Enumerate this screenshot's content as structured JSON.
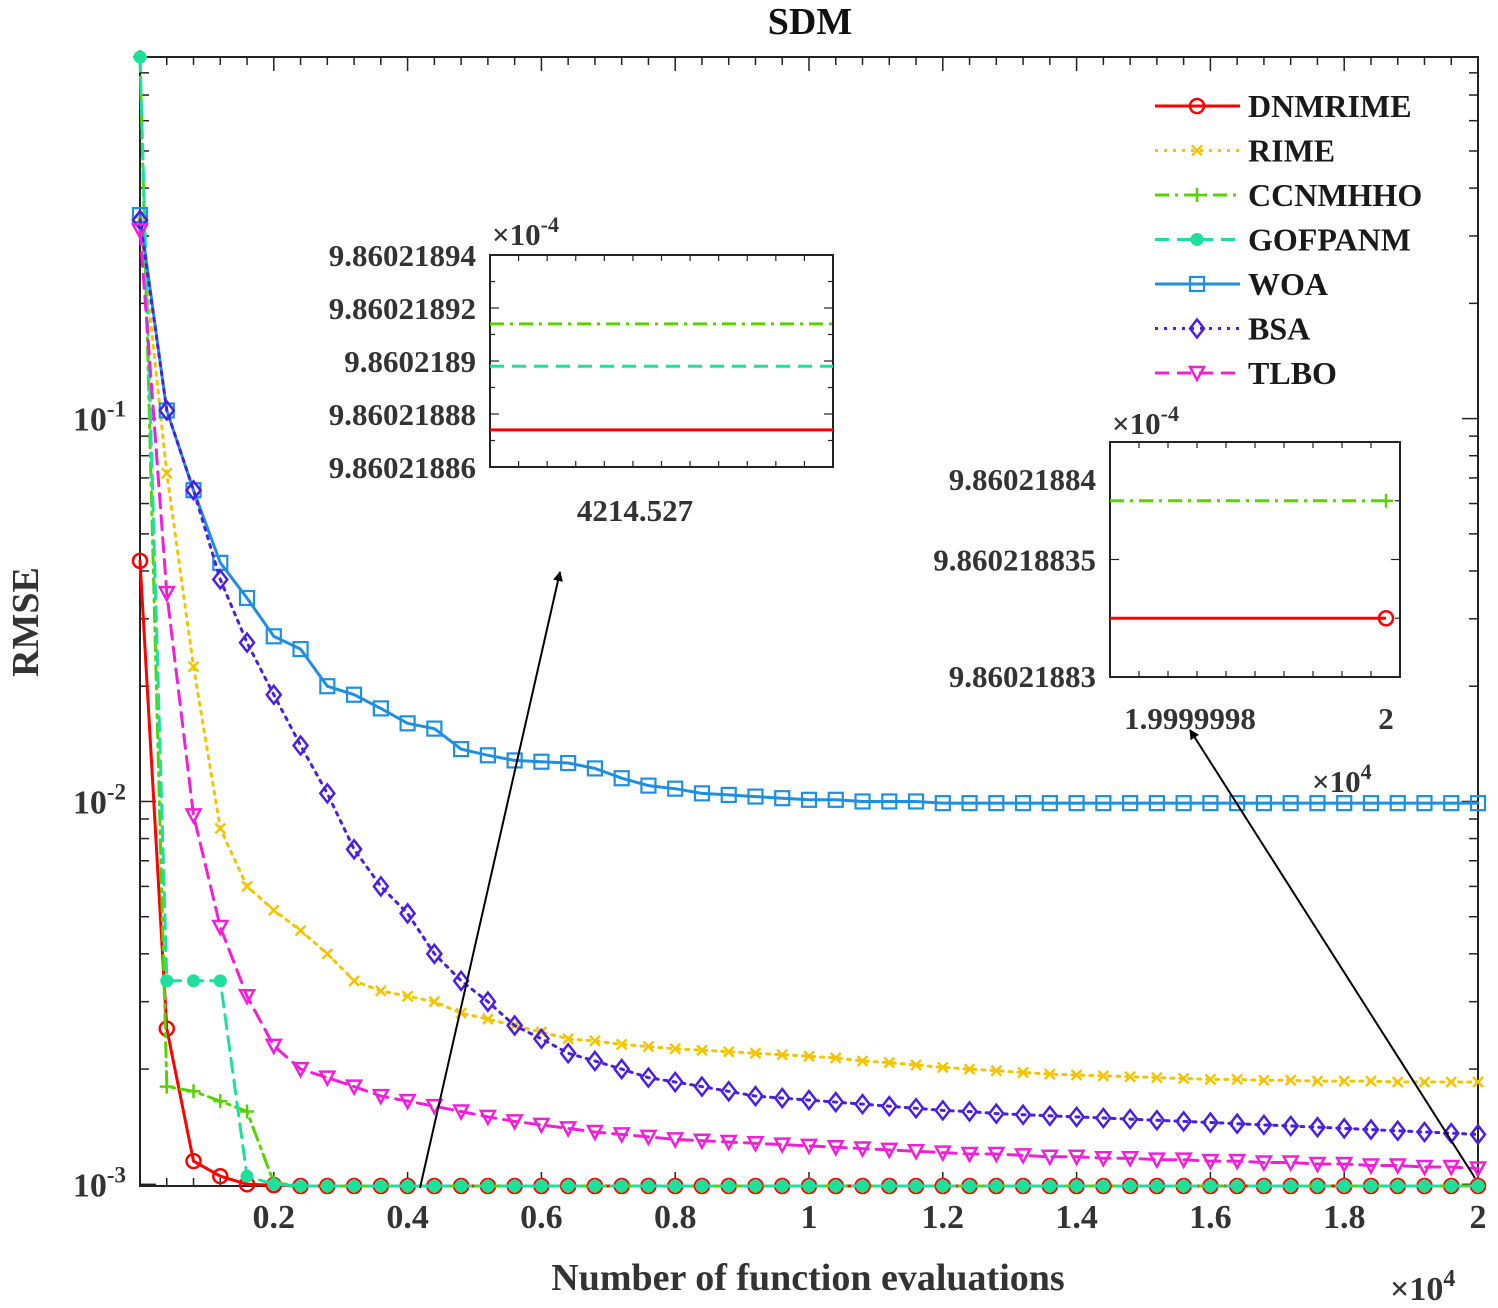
{
  "chart_data": {
    "type": "line",
    "title": "SDM",
    "xlabel": "Number of function evaluations",
    "ylabel": "RMSE",
    "x_exponent_label": "×10",
    "x_exponent_power": "4",
    "yscale": "log",
    "xlim": [
      0,
      20000
    ],
    "ylim": [
      0.00099,
      0.88
    ],
    "xticks": [
      2000,
      4000,
      6000,
      8000,
      10000,
      12000,
      14000,
      16000,
      18000,
      20000
    ],
    "xtick_labels": [
      "0.2",
      "0.4",
      "0.6",
      "0.8",
      "1",
      "1.2",
      "1.4",
      "1.6",
      "1.8",
      "2"
    ],
    "yticks": [
      0.1,
      0.01,
      0.001
    ],
    "ytick_base": "10",
    "ytick_powers": [
      "-1",
      "-2",
      "-3"
    ],
    "x": [
      0,
      400,
      800,
      1200,
      1600,
      2000,
      2400,
      2800,
      3200,
      3600,
      4000,
      4400,
      4800,
      5200,
      5600,
      6000,
      6400,
      6800,
      7200,
      7600,
      8000,
      8400,
      8800,
      9200,
      9600,
      10000,
      10400,
      10800,
      11200,
      11600,
      12000,
      12400,
      12800,
      13200,
      13600,
      14000,
      14400,
      14800,
      15200,
      15600,
      16000,
      16400,
      16800,
      17200,
      17600,
      18000,
      18400,
      18800,
      19200,
      19600,
      20000
    ],
    "series": [
      {
        "name": "DNMRIME",
        "color": "#ff0000",
        "dash": "solid",
        "marker": "circle",
        "values": [
          0.0425,
          0.00255,
          0.00115,
          0.00105,
          0.001,
          0.000995,
          0.00099,
          0.00099,
          0.00099,
          0.00099,
          0.00099,
          0.00099,
          0.00099,
          0.00099,
          0.00099,
          0.00099,
          0.00099,
          0.00099,
          0.00099,
          0.00099,
          0.00099,
          0.00099,
          0.00099,
          0.00099,
          0.00099,
          0.00099,
          0.00099,
          0.00099,
          0.00099,
          0.00099,
          0.00099,
          0.00099,
          0.00099,
          0.00099,
          0.00099,
          0.00099,
          0.00099,
          0.00099,
          0.00099,
          0.00099,
          0.00099,
          0.00099,
          0.00099,
          0.00099,
          0.00099,
          0.00099,
          0.00099,
          0.00099,
          0.00099,
          0.00099,
          0.00099
        ]
      },
      {
        "name": "RIME",
        "color": "#f5c400",
        "dash": "dotted",
        "marker": "x",
        "values": [
          0.33,
          0.072,
          0.0225,
          0.0085,
          0.006,
          0.0052,
          0.0046,
          0.004,
          0.0034,
          0.0032,
          0.0031,
          0.003,
          0.0028,
          0.0027,
          0.0026,
          0.0025,
          0.0024,
          0.00237,
          0.00232,
          0.00229,
          0.00226,
          0.00224,
          0.00222,
          0.0022,
          0.00218,
          0.00216,
          0.00214,
          0.0021,
          0.00208,
          0.00205,
          0.00202,
          0.002,
          0.00198,
          0.00196,
          0.00194,
          0.00193,
          0.00192,
          0.00191,
          0.0019,
          0.00189,
          0.00188,
          0.00188,
          0.00187,
          0.00187,
          0.00186,
          0.00186,
          0.00186,
          0.00185,
          0.00185,
          0.00185,
          0.00185
        ]
      },
      {
        "name": "CCNMHHO",
        "color": "#57d400",
        "dash": "dashdot",
        "marker": "plus",
        "values": [
          0.88,
          0.0018,
          0.00175,
          0.00165,
          0.00155,
          0.00101,
          0.00099,
          0.00099,
          0.00099,
          0.00099,
          0.00099,
          0.00099,
          0.00099,
          0.00099,
          0.00099,
          0.00099,
          0.00099,
          0.00099,
          0.00099,
          0.00099,
          0.00099,
          0.00099,
          0.00099,
          0.00099,
          0.00099,
          0.00099,
          0.00099,
          0.00099,
          0.00099,
          0.00099,
          0.00099,
          0.00099,
          0.00099,
          0.00099,
          0.00099,
          0.00099,
          0.00099,
          0.00099,
          0.00099,
          0.00099,
          0.00099,
          0.00099,
          0.00099,
          0.00099,
          0.00099,
          0.00099,
          0.00099,
          0.00099,
          0.00099,
          0.00099,
          0.00099
        ]
      },
      {
        "name": "GOFPANM",
        "color": "#1de09c",
        "dash": "dashed",
        "marker": "asterisk",
        "values": [
          0.88,
          0.0034,
          0.0034,
          0.0034,
          0.00105,
          0.001,
          0.00099,
          0.00099,
          0.00099,
          0.00099,
          0.00099,
          0.00099,
          0.00099,
          0.00099,
          0.00099,
          0.00099,
          0.00099,
          0.00099,
          0.00099,
          0.00099,
          0.00099,
          0.00099,
          0.00099,
          0.00099,
          0.00099,
          0.00099,
          0.00099,
          0.00099,
          0.00099,
          0.00099,
          0.00099,
          0.00099,
          0.00099,
          0.00099,
          0.00099,
          0.00099,
          0.00099,
          0.00099,
          0.00099,
          0.00099,
          0.00099,
          0.00099,
          0.00099,
          0.00099,
          0.00099,
          0.00099,
          0.00099,
          0.00099,
          0.00099,
          0.00099,
          0.00099
        ]
      },
      {
        "name": "WOA",
        "color": "#1f8fe0",
        "dash": "solid",
        "marker": "square",
        "values": [
          0.34,
          0.105,
          0.065,
          0.042,
          0.034,
          0.027,
          0.025,
          0.02,
          0.019,
          0.0175,
          0.016,
          0.0155,
          0.0137,
          0.0132,
          0.0128,
          0.0127,
          0.0126,
          0.0122,
          0.0115,
          0.011,
          0.0108,
          0.0105,
          0.0104,
          0.0103,
          0.0102,
          0.0101,
          0.0101,
          0.01,
          0.01,
          0.01,
          0.0099,
          0.0099,
          0.0099,
          0.0099,
          0.0099,
          0.0099,
          0.0099,
          0.0099,
          0.0099,
          0.0099,
          0.0099,
          0.0099,
          0.0099,
          0.0099,
          0.0099,
          0.0099,
          0.0099,
          0.0099,
          0.0099,
          0.0099,
          0.0099
        ]
      },
      {
        "name": "BSA",
        "color": "#4b1fe0",
        "dash": "dotted",
        "marker": "diamond",
        "values": [
          0.33,
          0.105,
          0.065,
          0.038,
          0.026,
          0.019,
          0.014,
          0.0105,
          0.0075,
          0.006,
          0.0051,
          0.004,
          0.0034,
          0.003,
          0.0026,
          0.0024,
          0.0022,
          0.0021,
          0.002,
          0.0019,
          0.00185,
          0.0018,
          0.00175,
          0.0017,
          0.00168,
          0.00166,
          0.00164,
          0.00162,
          0.0016,
          0.00158,
          0.00156,
          0.00155,
          0.00153,
          0.00152,
          0.00151,
          0.0015,
          0.00149,
          0.00148,
          0.00147,
          0.00146,
          0.00145,
          0.00144,
          0.00143,
          0.00142,
          0.00141,
          0.0014,
          0.00139,
          0.00138,
          0.00137,
          0.00136,
          0.00135
        ]
      },
      {
        "name": "TLBO",
        "color": "#f020d8",
        "dash": "dashed",
        "marker": "triangle-down",
        "values": [
          0.31,
          0.035,
          0.0092,
          0.0047,
          0.0031,
          0.0023,
          0.002,
          0.0019,
          0.0018,
          0.0017,
          0.00165,
          0.0016,
          0.00155,
          0.0015,
          0.00146,
          0.00143,
          0.0014,
          0.00137,
          0.00135,
          0.00133,
          0.00131,
          0.0013,
          0.00129,
          0.00128,
          0.00127,
          0.00126,
          0.00125,
          0.00124,
          0.00123,
          0.00122,
          0.00121,
          0.0012,
          0.0012,
          0.00119,
          0.00118,
          0.00118,
          0.00117,
          0.00117,
          0.00116,
          0.00116,
          0.00115,
          0.00115,
          0.00114,
          0.00114,
          0.00113,
          0.00113,
          0.00112,
          0.00112,
          0.00111,
          0.00111,
          0.0011
        ]
      }
    ],
    "insets": [
      {
        "name": "inset-1",
        "exponent_label": "×10",
        "exponent_power": "-4",
        "ytick_labels": [
          "9.86021894",
          "9.86021892",
          "9.8602189",
          "9.86021888",
          "9.86021886"
        ],
        "yticks": [
          9.86021894,
          9.86021892,
          9.8602189,
          9.86021888,
          9.86021886
        ],
        "ylim": [
          9.86021886,
          9.86021894
        ],
        "xtick_label": "4214.527",
        "lines": [
          {
            "series": "CCNMHHO",
            "y": 9.860218914
          },
          {
            "series": "GOFPANM",
            "y": 9.860218898
          },
          {
            "series": "DNMRIME",
            "y": 9.860218874
          }
        ]
      },
      {
        "name": "inset-2",
        "exponent_label": "×10",
        "exponent_power": "-4",
        "ytick_labels": [
          "9.86021884",
          "9.860218835",
          "9.86021883"
        ],
        "yticks": [
          9.86021884,
          9.860218835,
          9.86021883
        ],
        "ylim": [
          9.86021883,
          9.86021884
        ],
        "xtick_labels": [
          "1.9999998",
          "2"
        ],
        "x_exponent_label": "×10",
        "x_exponent_power": "4",
        "lines": [
          {
            "series": "CCNMHHO",
            "y": 9.8602188375
          },
          {
            "series": "DNMRIME",
            "y": 9.8602188325
          }
        ]
      }
    ],
    "legend_position": "top-right"
  }
}
